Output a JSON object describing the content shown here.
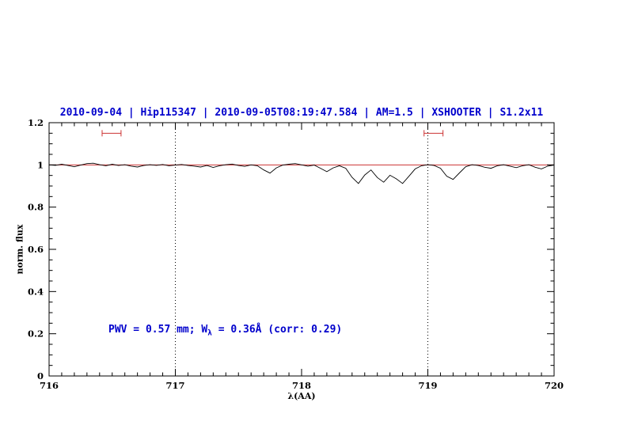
{
  "header": {
    "title": "2010-09-04 | Hip115347 | 2010-09-05T08:19:47.584 | AM=1.5 | XSHOOTER | S1.2x11"
  },
  "colors": {
    "title": "#0000cc",
    "annotation": "#0000cc",
    "spectrum": "#000000",
    "continuum": "#cc3333",
    "range_marker": "#cc3333",
    "axis": "#000000"
  },
  "chart_data": {
    "type": "line",
    "title": "2010-09-04 | Hip115347 | 2010-09-05T08:19:47.584 | AM=1.5 | XSHOOTER | S1.2x11",
    "xlabel": "λ(AA)",
    "ylabel": "norm. flux",
    "xlim": [
      716,
      720
    ],
    "ylim": [
      0,
      1.2
    ],
    "xticks": [
      716,
      717,
      718,
      719,
      720
    ],
    "xticklabels": [
      "716",
      "717",
      "718",
      "719",
      "720"
    ],
    "yticks": [
      0,
      0.2,
      0.4,
      0.6,
      0.8,
      1,
      1.2
    ],
    "yticklabels": [
      "0",
      "0.2",
      "0.4",
      "0.6",
      "0.8",
      "1",
      "1.2"
    ],
    "minor_x_step": 0.1,
    "minor_y_step": 0.05,
    "grid": false,
    "dotted_vlines": [
      717,
      719
    ],
    "continuum_level": 1.0,
    "range_markers": [
      {
        "x1": 716.42,
        "x2": 716.57,
        "y": 1.15
      },
      {
        "x1": 718.97,
        "x2": 719.12,
        "y": 1.15
      }
    ],
    "annotation": {
      "text_pre": "PWV = 0.57 mm; W",
      "text_sub": "λ",
      "text_post": " = 0.36Å (corr: 0.29)",
      "x": 716.47,
      "y": 0.21
    },
    "series": [
      {
        "name": "spectrum",
        "x": [
          716.0,
          716.05,
          716.1,
          716.15,
          716.2,
          716.25,
          716.3,
          716.35,
          716.4,
          716.45,
          716.5,
          716.55,
          716.6,
          716.65,
          716.7,
          716.75,
          716.8,
          716.85,
          716.9,
          716.95,
          717.0,
          717.05,
          717.1,
          717.15,
          717.2,
          717.25,
          717.3,
          717.35,
          717.4,
          717.45,
          717.5,
          717.55,
          717.6,
          717.65,
          717.7,
          717.75,
          717.8,
          717.85,
          717.9,
          717.95,
          718.0,
          718.05,
          718.1,
          718.15,
          718.2,
          718.25,
          718.3,
          718.35,
          718.4,
          718.45,
          718.5,
          718.55,
          718.6,
          718.65,
          718.7,
          718.75,
          718.8,
          718.85,
          718.9,
          718.95,
          719.0,
          719.05,
          719.1,
          719.15,
          719.2,
          719.25,
          719.3,
          719.35,
          719.4,
          719.45,
          719.5,
          719.55,
          719.6,
          719.65,
          719.7,
          719.75,
          719.8,
          719.85,
          719.9,
          719.95,
          720.0
        ],
        "y": [
          1.0,
          0.998,
          1.003,
          0.997,
          0.991,
          0.999,
          1.006,
          1.008,
          1.001,
          0.996,
          1.003,
          0.997,
          1.001,
          0.994,
          0.99,
          0.997,
          1.001,
          0.998,
          1.002,
          0.996,
          0.999,
          1.002,
          0.997,
          0.994,
          0.99,
          0.997,
          0.988,
          0.996,
          1.001,
          1.004,
          0.997,
          0.993,
          1.0,
          0.996,
          0.976,
          0.961,
          0.986,
          0.999,
          1.003,
          1.006,
          1.0,
          0.994,
          0.999,
          0.984,
          0.968,
          0.986,
          0.996,
          0.984,
          0.941,
          0.912,
          0.952,
          0.976,
          0.94,
          0.918,
          0.951,
          0.934,
          0.912,
          0.946,
          0.981,
          0.996,
          1.001,
          0.997,
          0.984,
          0.946,
          0.931,
          0.962,
          0.991,
          1.001,
          0.997,
          0.989,
          0.984,
          0.996,
          1.001,
          0.994,
          0.987,
          0.996,
          1.001,
          0.989,
          0.981,
          0.994,
          0.999
        ]
      }
    ]
  }
}
